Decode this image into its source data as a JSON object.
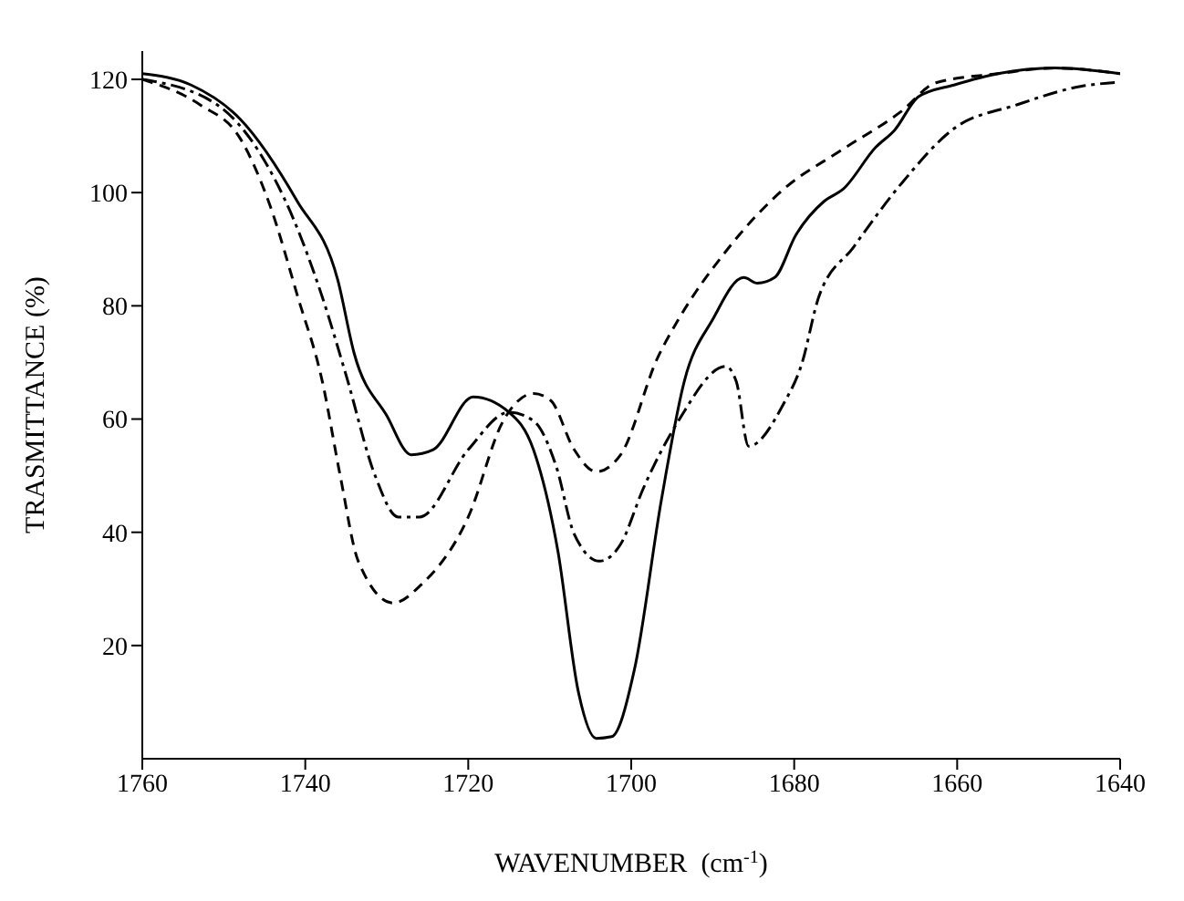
{
  "chart_data": {
    "type": "line",
    "xlabel": "WAVENUMBER  (cm$^{-1}$)",
    "ylabel": "TRASMITTANCE (%)",
    "xlim": [
      1760,
      1640
    ],
    "xticks": [
      1760,
      1740,
      1720,
      1700,
      1680,
      1660,
      1640
    ],
    "ylim": [
      0,
      125
    ],
    "yticks": [
      20,
      40,
      60,
      80,
      100,
      120
    ],
    "grid": false,
    "legend": false,
    "marker": "none",
    "series": [
      {
        "color": "#000000",
        "line_style": "solid",
        "x": [
          1760,
          1754,
          1748,
          1741,
          1736,
          1734,
          1730,
          1727,
          1724.3,
          1719.4,
          1715,
          1712,
          1709,
          1706.5,
          1704.3,
          1702.4,
          1699.6,
          1696.3,
          1693.5,
          1690,
          1686.2,
          1684.5,
          1682.4,
          1679.8,
          1676.3,
          1674,
          1670,
          1667.7,
          1664.7,
          1660.4,
          1655,
          1648,
          1640
        ],
        "values": [
          121,
          119,
          113,
          98.5,
          84.5,
          71.6,
          60.6,
          53.7,
          54.6,
          63.9,
          61.2,
          54.6,
          36.7,
          11.9,
          3.6,
          3.9,
          15.8,
          45.7,
          66.6,
          77.6,
          85,
          84,
          85,
          92.5,
          98.5,
          100.6,
          108,
          111,
          117,
          119,
          121,
          122,
          121
        ]
      },
      {
        "color": "#000000",
        "line_style": "dashdot",
        "x": [
          1760,
          1750.8,
          1745.8,
          1741.5,
          1737.9,
          1735,
          1731.4,
          1728.6,
          1726,
          1720,
          1715,
          1712,
          1709.2,
          1707,
          1703.9,
          1701.3,
          1698.5,
          1694.2,
          1688.4,
          1687.1,
          1685.6,
          1681.3,
          1679.1,
          1677,
          1672.7,
          1666.9,
          1660.4,
          1652.7,
          1644.7,
          1640
        ],
        "values": [
          120,
          115.5,
          107.5,
          95.5,
          81.5,
          67.8,
          49.9,
          42.7,
          42.7,
          54.6,
          61.2,
          59.7,
          51.6,
          39.7,
          34.9,
          37.9,
          47.8,
          59.7,
          69.3,
          66.6,
          55.2,
          62.7,
          69.6,
          81.5,
          90.4,
          101.5,
          111.3,
          115.5,
          118.8,
          119.5
        ]
      },
      {
        "color": "#000000",
        "line_style": "dashed",
        "x": [
          1760,
          1752.9,
          1748,
          1744.3,
          1740.9,
          1737.9,
          1735.7,
          1733.5,
          1729.2,
          1725.8,
          1720,
          1715.7,
          1712,
          1709.9,
          1707,
          1704.3,
          1701.3,
          1696.8,
          1694.2,
          1688.4,
          1681.3,
          1674.2,
          1666.9,
          1662.6,
          1655,
          1648,
          1640
        ],
        "values": [
          120,
          115.5,
          109.6,
          97.6,
          81.5,
          66.6,
          49.9,
          34.9,
          27.5,
          30.7,
          42.7,
          59.7,
          64.5,
          63.3,
          54.6,
          50.7,
          53.7,
          70.7,
          77.6,
          89.6,
          100.6,
          107.5,
          114.3,
          119.4,
          121,
          122,
          121
        ]
      }
    ]
  }
}
